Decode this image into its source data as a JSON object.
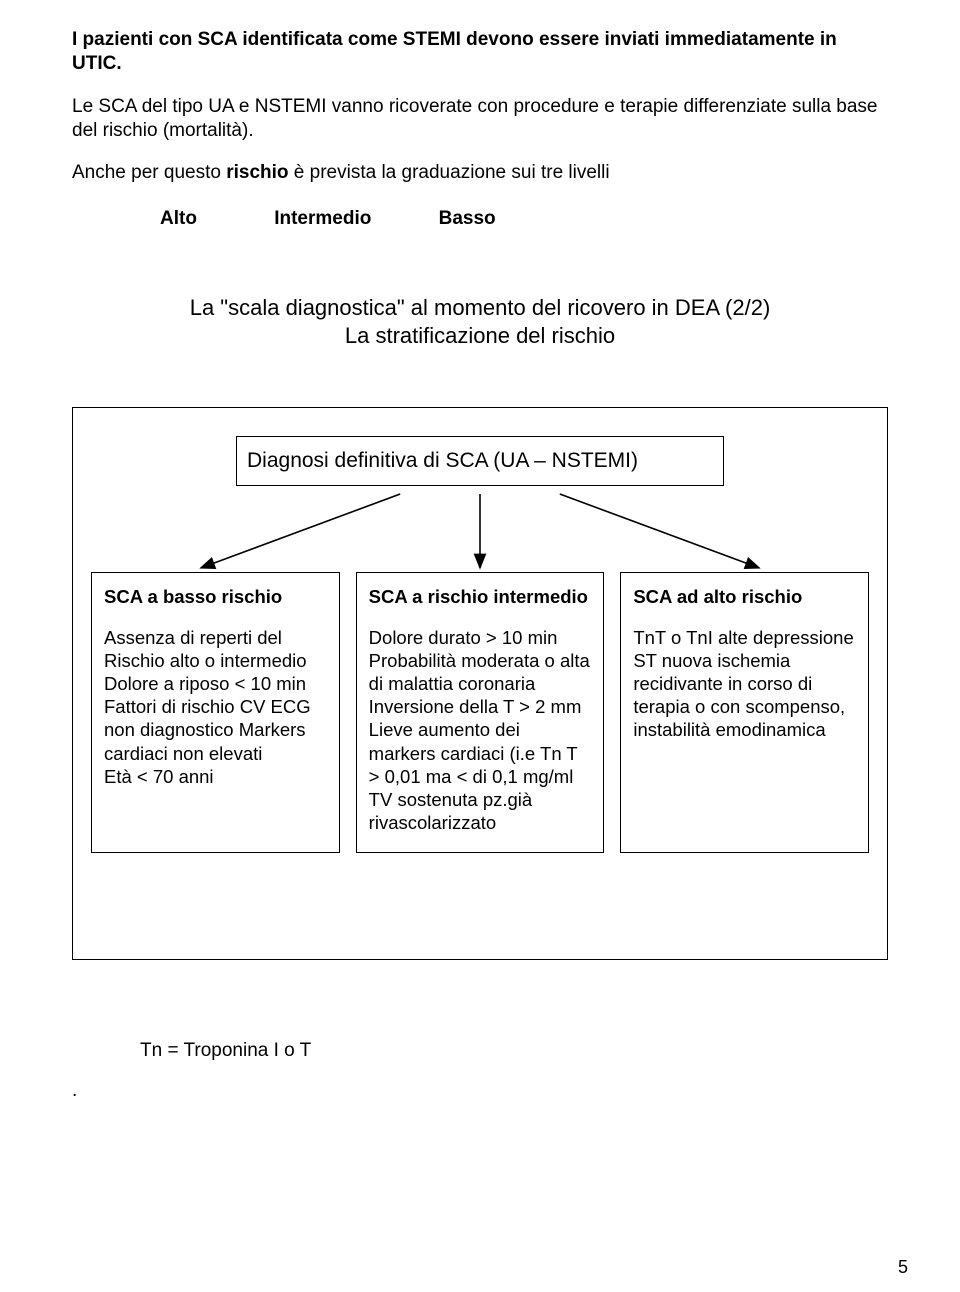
{
  "intro": {
    "p1a": "I pazienti con SCA identificata come STEMI devono essere inviati immediatamente in UTIC.",
    "p2a": "Le SCA del tipo UA e NSTEMI vanno ricoverate con procedure e terapie differenziate sulla base del rischio (mortalità).",
    "p3a": "Anche per questo ",
    "p3b": "rischio",
    "p3c": " è prevista la graduazione sui tre livelli"
  },
  "levels": {
    "a": "Alto",
    "i": "Intermedio",
    "b": "Basso"
  },
  "section": {
    "l1": "La \"scala diagnostica\" al momento del ricovero in DEA (2/2)",
    "l2": "La stratificazione del rischio"
  },
  "topbox": "Diagnosi definitiva di SCA (UA – NSTEMI)",
  "cols": {
    "c1": {
      "title": "SCA a basso rischio",
      "body": "Assenza di reperti del Rischio alto o intermedio Dolore a riposo < 10 min Fattori di rischio CV ECG non diagnostico Markers cardiaci non elevati\nEtà < 70 anni"
    },
    "c2": {
      "title": "SCA a rischio intermedio",
      "body": "Dolore durato > 10 min Probabilità moderata o alta di malattia coronaria Inversione della T > 2 mm Lieve aumento dei markers cardiaci (i.e Tn T > 0,01 ma < di 0,1 mg/ml TV sostenuta pz.già rivascolarizzato"
    },
    "c3": {
      "title": "SCA ad alto rischio",
      "body": "TnT o TnI alte depressione ST nuova ischemia recidivante in corso di terapia o con scompenso, instabilità emodinamica"
    }
  },
  "footnote": "Tn = Troponina I o T",
  "dot": ".",
  "pagenum": "5",
  "style": {
    "stroke": "#000000",
    "strokeWidth": 1.6
  }
}
